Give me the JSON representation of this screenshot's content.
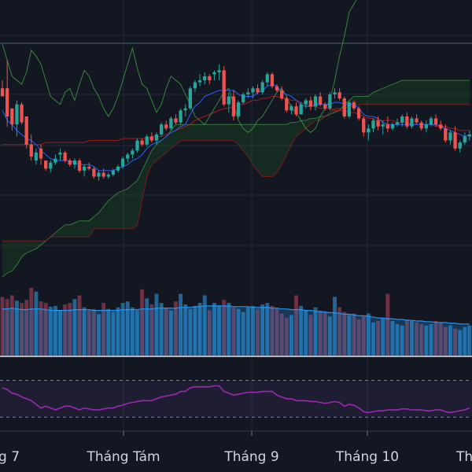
{
  "chart_data": {
    "type": "candlestick",
    "grid": true,
    "colors": {
      "background": "#131722",
      "grid": "#252a37",
      "up": "#26a69a",
      "down": "#ef5350",
      "tenkan": "#2962ff",
      "kijun": "#b71c1c",
      "lagging": "#43a047",
      "cloud_bull": "#1b5e20",
      "cloud_bear": "#b71c1c",
      "volume": "#2a7fb8",
      "volume_ma": "#2196f3",
      "rsi": "#9c27b0",
      "rsi_band": "#7e57c2",
      "text": "#d1d4dc"
    },
    "x_tick_labels": [
      "g 7",
      "Tháng Tám",
      "Tháng 9",
      "Tháng 10",
      "Th"
    ],
    "ohlc": [
      [
        66,
        70,
        62,
        62
      ],
      [
        66,
        80,
        47,
        52
      ],
      [
        56,
        56,
        45,
        48
      ],
      [
        48,
        60,
        42,
        58
      ],
      [
        58,
        59,
        48,
        49
      ],
      [
        52,
        52,
        36,
        38
      ],
      [
        38,
        43,
        30,
        32
      ],
      [
        30,
        36,
        28,
        34
      ],
      [
        36,
        38,
        28,
        31
      ],
      [
        30,
        30,
        25,
        26
      ],
      [
        26,
        30,
        24,
        29
      ],
      [
        29,
        33,
        28,
        31
      ],
      [
        33,
        36,
        30,
        34
      ],
      [
        34,
        35,
        29,
        30
      ],
      [
        30,
        31,
        27,
        28
      ],
      [
        28,
        31,
        26,
        30
      ],
      [
        30,
        31,
        24,
        25
      ],
      [
        25,
        28,
        22,
        27
      ],
      [
        27,
        29,
        25,
        26
      ],
      [
        26,
        27,
        21,
        22
      ],
      [
        22,
        25,
        20,
        24
      ],
      [
        24,
        26,
        21,
        22
      ],
      [
        22,
        24,
        21,
        23
      ],
      [
        23,
        26,
        22,
        25
      ],
      [
        25,
        28,
        24,
        27
      ],
      [
        27,
        32,
        26,
        31
      ],
      [
        31,
        34,
        29,
        33
      ],
      [
        33,
        36,
        31,
        35
      ],
      [
        35,
        41,
        34,
        40
      ],
      [
        40,
        41,
        37,
        38
      ],
      [
        38,
        43,
        37,
        42
      ],
      [
        42,
        44,
        39,
        40
      ],
      [
        40,
        44,
        38,
        43
      ],
      [
        43,
        49,
        42,
        48
      ],
      [
        48,
        50,
        45,
        46
      ],
      [
        46,
        52,
        45,
        51
      ],
      [
        51,
        53,
        48,
        49
      ],
      [
        49,
        56,
        48,
        55
      ],
      [
        55,
        58,
        52,
        56
      ],
      [
        56,
        67,
        55,
        66
      ],
      [
        66,
        70,
        64,
        69
      ],
      [
        69,
        73,
        67,
        70
      ],
      [
        70,
        74,
        68,
        72
      ],
      [
        72,
        73,
        68,
        70
      ],
      [
        73,
        75,
        70,
        74
      ],
      [
        74,
        78,
        70,
        75
      ],
      [
        75,
        77,
        57,
        58
      ],
      [
        58,
        64,
        54,
        62
      ],
      [
        62,
        65,
        50,
        52
      ],
      [
        52,
        60,
        51,
        59
      ],
      [
        59,
        64,
        58,
        63
      ],
      [
        63,
        66,
        61,
        64
      ],
      [
        64,
        67,
        61,
        66
      ],
      [
        66,
        68,
        63,
        64
      ],
      [
        64,
        70,
        63,
        69
      ],
      [
        69,
        74,
        67,
        73
      ],
      [
        73,
        74,
        66,
        67
      ],
      [
        67,
        68,
        64,
        65
      ],
      [
        65,
        67,
        60,
        61
      ],
      [
        61,
        62,
        54,
        55
      ],
      [
        55,
        58,
        53,
        57
      ],
      [
        57,
        59,
        52,
        53
      ],
      [
        53,
        59,
        53,
        58
      ],
      [
        58,
        61,
        56,
        60
      ],
      [
        60,
        62,
        55,
        57
      ],
      [
        57,
        63,
        55,
        62
      ],
      [
        62,
        64,
        57,
        58
      ],
      [
        58,
        59,
        55,
        56
      ],
      [
        56,
        64,
        55,
        63
      ],
      [
        63,
        66,
        61,
        64
      ],
      [
        64,
        66,
        60,
        61
      ],
      [
        61,
        62,
        51,
        52
      ],
      [
        52,
        60,
        51,
        59
      ],
      [
        59,
        60,
        55,
        56
      ],
      [
        56,
        57,
        50,
        51
      ],
      [
        51,
        52,
        42,
        44
      ],
      [
        44,
        48,
        40,
        46
      ],
      [
        46,
        51,
        44,
        50
      ],
      [
        50,
        52,
        45,
        47
      ],
      [
        47,
        50,
        43,
        48
      ],
      [
        48,
        52,
        44,
        46
      ],
      [
        46,
        49,
        45,
        48
      ],
      [
        48,
        51,
        47,
        49
      ],
      [
        49,
        53,
        47,
        52
      ],
      [
        52,
        54,
        46,
        47
      ],
      [
        47,
        52,
        46,
        51
      ],
      [
        51,
        53,
        48,
        49
      ],
      [
        49,
        50,
        45,
        46
      ],
      [
        46,
        50,
        44,
        48
      ],
      [
        48,
        52,
        47,
        51
      ],
      [
        51,
        53,
        47,
        48
      ],
      [
        48,
        50,
        45,
        46
      ],
      [
        46,
        48,
        39,
        40
      ],
      [
        40,
        45,
        38,
        44
      ],
      [
        44,
        47,
        35,
        36
      ],
      [
        36,
        40,
        34,
        39
      ],
      [
        39,
        44,
        38,
        42
      ],
      [
        42,
        45,
        40,
        43
      ]
    ],
    "tenkan": [
      55,
      50,
      48,
      45,
      43,
      41,
      40,
      38,
      35,
      33,
      31,
      30,
      30,
      30,
      30,
      29,
      28,
      28,
      28,
      27,
      25,
      25,
      25,
      25,
      26,
      27,
      28,
      30,
      31,
      33,
      36,
      38,
      39,
      40,
      42,
      44,
      45,
      47,
      48,
      53,
      57,
      59,
      62,
      63,
      64,
      65,
      65,
      65,
      65,
      63,
      62,
      62,
      62,
      64,
      65,
      67,
      68,
      67,
      64,
      63,
      62,
      60,
      58,
      57,
      57,
      58,
      58,
      58,
      58,
      59,
      59,
      58,
      58,
      58,
      56,
      53,
      52,
      52,
      51,
      49,
      48,
      48,
      48,
      48,
      48,
      48,
      48,
      48,
      48,
      48,
      48,
      47,
      46,
      45,
      44,
      43,
      42,
      43
    ],
    "kijun": [
      38,
      38,
      38,
      38,
      38,
      38,
      38,
      38,
      38,
      39,
      39,
      39,
      39,
      39,
      39,
      39,
      39,
      39,
      40,
      40,
      40,
      40,
      40,
      40,
      40,
      41,
      41,
      41,
      41,
      41,
      41,
      42,
      42,
      42,
      43,
      44,
      45,
      46,
      47,
      48,
      50,
      51,
      52,
      53,
      54,
      55,
      56,
      56,
      57,
      58,
      58,
      59,
      60,
      60,
      61,
      61,
      62,
      62,
      61,
      61,
      60,
      60,
      59,
      58,
      57,
      57,
      56,
      56,
      56,
      55,
      55,
      55,
      54,
      54,
      53,
      52,
      51,
      51,
      50,
      50,
      50,
      50,
      49,
      49,
      49,
      48,
      48,
      48,
      48,
      48,
      47,
      47,
      47,
      46,
      46,
      45,
      45,
      45
    ],
    "lagging": [
      88,
      80,
      72,
      70,
      68,
      74,
      85,
      82,
      78,
      70,
      62,
      60,
      58,
      64,
      66,
      60,
      68,
      75,
      72,
      66,
      62,
      56,
      52,
      56,
      62,
      70,
      78,
      86,
      76,
      68,
      66,
      60,
      54,
      58,
      66,
      72,
      70,
      68,
      63,
      58,
      52,
      50,
      48,
      52,
      56,
      60,
      64,
      66,
      58,
      50,
      46,
      44,
      46,
      50,
      52,
      56,
      60,
      64,
      66,
      62,
      56,
      54,
      50,
      46,
      44,
      46,
      52,
      56,
      60,
      70,
      82,
      92,
      104,
      108,
      112
    ],
    "span_a": [
      -28,
      -26,
      -25,
      -22,
      -18,
      -16,
      -15,
      -14,
      -12,
      -10,
      -8,
      -6,
      -4,
      -2,
      -2,
      -1,
      0,
      0,
      0,
      2,
      4,
      7,
      10,
      12,
      14,
      15,
      16,
      18,
      20,
      25,
      30,
      35,
      38,
      40,
      42,
      45,
      48,
      48,
      48,
      48,
      48,
      48,
      48,
      48,
      48,
      48,
      48,
      48,
      48,
      48,
      48,
      48,
      48,
      48,
      48,
      48,
      48,
      48,
      48,
      48,
      49,
      49,
      50,
      50,
      51,
      51,
      52,
      52,
      53,
      54,
      55,
      58,
      60,
      62,
      62,
      62,
      62,
      64,
      65,
      66,
      67,
      68,
      69,
      70,
      70,
      70,
      70,
      70,
      70,
      70,
      70,
      70,
      70,
      70,
      70,
      70,
      70,
      70
    ],
    "span_b": [
      -10,
      -10,
      -10,
      -10,
      -10,
      -10,
      -10,
      -10,
      -10,
      -10,
      -8,
      -8,
      -8,
      -8,
      -8,
      -8,
      -8,
      -8,
      -8,
      -4,
      -4,
      -4,
      -4,
      -4,
      -4,
      -4,
      -4,
      -4,
      -2,
      10,
      22,
      28,
      30,
      32,
      34,
      36,
      38,
      40,
      40,
      40,
      40,
      40,
      40,
      40,
      40,
      40,
      40,
      40,
      40,
      38,
      35,
      32,
      28,
      25,
      22,
      22,
      22,
      24,
      28,
      33,
      38,
      42,
      44,
      46,
      48,
      50,
      50,
      52,
      54,
      56,
      56,
      56,
      57,
      57,
      58,
      58,
      58,
      58,
      58,
      58,
      58,
      58,
      58,
      58,
      58,
      58,
      58,
      58,
      58,
      58,
      58,
      58,
      58,
      58,
      58,
      58,
      58,
      58
    ],
    "volume": [
      78,
      75,
      80,
      73,
      70,
      74,
      90,
      85,
      72,
      70,
      65,
      66,
      60,
      68,
      70,
      75,
      80,
      64,
      60,
      62,
      55,
      70,
      62,
      58,
      64,
      70,
      72,
      64,
      60,
      88,
      76,
      68,
      82,
      70,
      64,
      60,
      72,
      82,
      68,
      62,
      66,
      70,
      80,
      60,
      70,
      66,
      74,
      70,
      64,
      62,
      58,
      64,
      66,
      62,
      68,
      70,
      66,
      62,
      56,
      50,
      54,
      80,
      66,
      60,
      54,
      64,
      60,
      58,
      52,
      78,
      64,
      58,
      54,
      56,
      48,
      52,
      56,
      44,
      46,
      50,
      82,
      46,
      42,
      40,
      48,
      46,
      44,
      42,
      40,
      42,
      46,
      44,
      38,
      40,
      36,
      34,
      38,
      40
    ],
    "volume_ma": [
      62,
      62,
      63,
      62,
      61,
      61,
      62,
      62,
      62,
      61,
      60,
      60,
      60,
      60,
      60,
      61,
      61,
      61,
      61,
      60,
      60,
      60,
      60,
      60,
      60,
      61,
      61,
      61,
      61,
      62,
      62,
      62,
      63,
      63,
      63,
      63,
      63,
      64,
      64,
      64,
      65,
      65,
      66,
      66,
      66,
      66,
      66,
      66,
      65,
      65,
      65,
      65,
      64,
      64,
      64,
      64,
      63,
      63,
      62,
      62,
      61,
      61,
      61,
      60,
      60,
      59,
      58,
      58,
      57,
      57,
      56,
      55,
      55,
      54,
      53,
      53,
      52,
      51,
      50,
      50,
      49,
      49,
      48,
      48,
      47,
      47,
      46,
      46,
      45,
      45,
      44,
      44,
      44,
      43,
      43,
      42,
      42,
      42
    ],
    "rsi": [
      62,
      60,
      56,
      55,
      52,
      50,
      48,
      44,
      40,
      42,
      40,
      38,
      40,
      42,
      42,
      40,
      38,
      40,
      39,
      38,
      38,
      39,
      40,
      40,
      42,
      43,
      45,
      46,
      47,
      48,
      48,
      48,
      50,
      52,
      53,
      54,
      55,
      58,
      58,
      62,
      63,
      63,
      63,
      63,
      64,
      64,
      58,
      56,
      54,
      55,
      56,
      57,
      57,
      57,
      58,
      58,
      58,
      54,
      52,
      50,
      50,
      48,
      48,
      48,
      47,
      47,
      46,
      45,
      46,
      47,
      46,
      42,
      44,
      43,
      40,
      36,
      35,
      36,
      37,
      37,
      38,
      38,
      38,
      39,
      39,
      38,
      38,
      38,
      37,
      37,
      38,
      38,
      36,
      35,
      36,
      37,
      38,
      40
    ],
    "rsi_bands": [
      70,
      30
    ]
  }
}
